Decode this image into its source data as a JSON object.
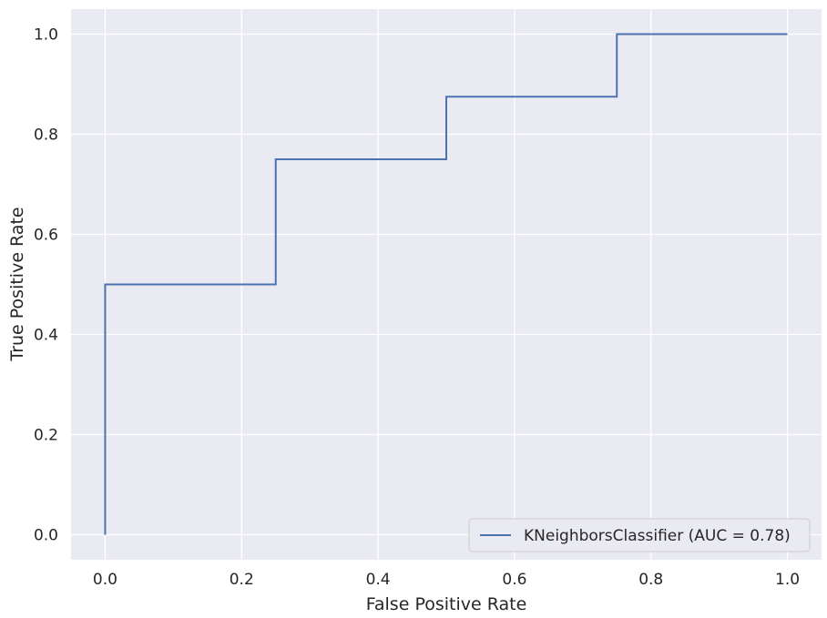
{
  "chart_data": {
    "type": "line",
    "xlabel": "False Positive Rate",
    "ylabel": "True Positive Rate",
    "xlim": [
      -0.05,
      1.05
    ],
    "ylim": [
      -0.05,
      1.05
    ],
    "xticks": [
      0.0,
      0.2,
      0.4,
      0.6,
      0.8,
      1.0
    ],
    "yticks": [
      0.0,
      0.2,
      0.4,
      0.6,
      0.8,
      1.0
    ],
    "xtick_labels": [
      "0.0",
      "0.2",
      "0.4",
      "0.6",
      "0.8",
      "1.0"
    ],
    "ytick_labels": [
      "0.0",
      "0.2",
      "0.4",
      "0.6",
      "0.8",
      "1.0"
    ],
    "grid": true,
    "legend_position": "bottom-right",
    "background_color": "#EAEAF2",
    "series": [
      {
        "name": "KNeighborsClassifier (AUC = 0.78)",
        "color": "#4C72B0",
        "x": [
          0.0,
          0.0,
          0.25,
          0.25,
          0.5,
          0.5,
          0.75,
          0.75,
          1.0
        ],
        "y": [
          0.0,
          0.5,
          0.5,
          0.75,
          0.75,
          0.875,
          0.875,
          1.0,
          1.0
        ]
      }
    ]
  }
}
